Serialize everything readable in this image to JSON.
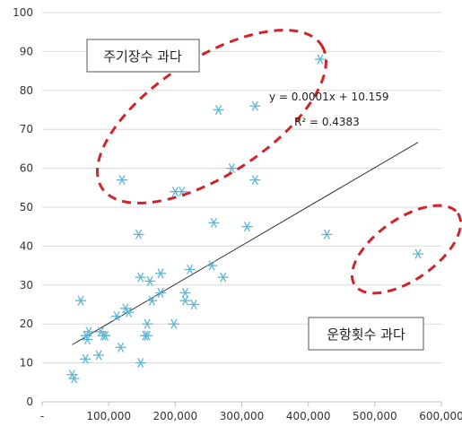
{
  "chart_data": {
    "type": "scatter",
    "xlim": [
      0,
      600000
    ],
    "ylim": [
      0,
      100
    ],
    "x_ticks": [
      0,
      100000,
      200000,
      300000,
      400000,
      500000,
      600000
    ],
    "x_tick_labels": [
      "-",
      "100,000",
      "200,000",
      "300,000",
      "400,000",
      "500,000",
      "600,000"
    ],
    "y_ticks": [
      0,
      10,
      20,
      30,
      40,
      50,
      60,
      70,
      80,
      90,
      100
    ],
    "y_tick_labels": [
      "0",
      "10",
      "20",
      "30",
      "40",
      "50",
      "60",
      "70",
      "80",
      "90",
      "100"
    ],
    "grid": "horizontal",
    "marker": "asterisk",
    "marker_color": "#5fb6d6",
    "points": [
      [
        45000,
        7
      ],
      [
        48000,
        6
      ],
      [
        58000,
        26
      ],
      [
        65000,
        11
      ],
      [
        66000,
        17
      ],
      [
        68000,
        16
      ],
      [
        70000,
        18
      ],
      [
        85000,
        12
      ],
      [
        88000,
        18
      ],
      [
        92000,
        17
      ],
      [
        95000,
        17
      ],
      [
        112000,
        22
      ],
      [
        118000,
        14
      ],
      [
        120000,
        57
      ],
      [
        125000,
        24
      ],
      [
        130000,
        23
      ],
      [
        145000,
        43
      ],
      [
        148000,
        10
      ],
      [
        148000,
        32
      ],
      [
        155000,
        17
      ],
      [
        158000,
        20
      ],
      [
        158000,
        17
      ],
      [
        162000,
        31
      ],
      [
        165000,
        26
      ],
      [
        178000,
        28
      ],
      [
        178000,
        33
      ],
      [
        198000,
        20
      ],
      [
        200000,
        54
      ],
      [
        210000,
        54
      ],
      [
        215000,
        26
      ],
      [
        215000,
        28
      ],
      [
        222000,
        34
      ],
      [
        228000,
        25
      ],
      [
        255000,
        35
      ],
      [
        258000,
        46
      ],
      [
        265000,
        75
      ],
      [
        272000,
        32
      ],
      [
        285000,
        60
      ],
      [
        308000,
        45
      ],
      [
        320000,
        76
      ],
      [
        320000,
        57
      ],
      [
        418000,
        88
      ],
      [
        428000,
        43
      ],
      [
        565000,
        38
      ]
    ],
    "trendline": {
      "slope": 0.0001,
      "intercept": 10.159,
      "x_range": [
        45000,
        565000
      ],
      "color": "#333333"
    },
    "annotations": {
      "equation": "y = 0.0001x + 10.159",
      "r_squared": "R² = 0.4383",
      "box_top": "주기장수 과다",
      "box_bottom": "운항횟수 과다"
    },
    "highlight_color": "#d0242b"
  }
}
